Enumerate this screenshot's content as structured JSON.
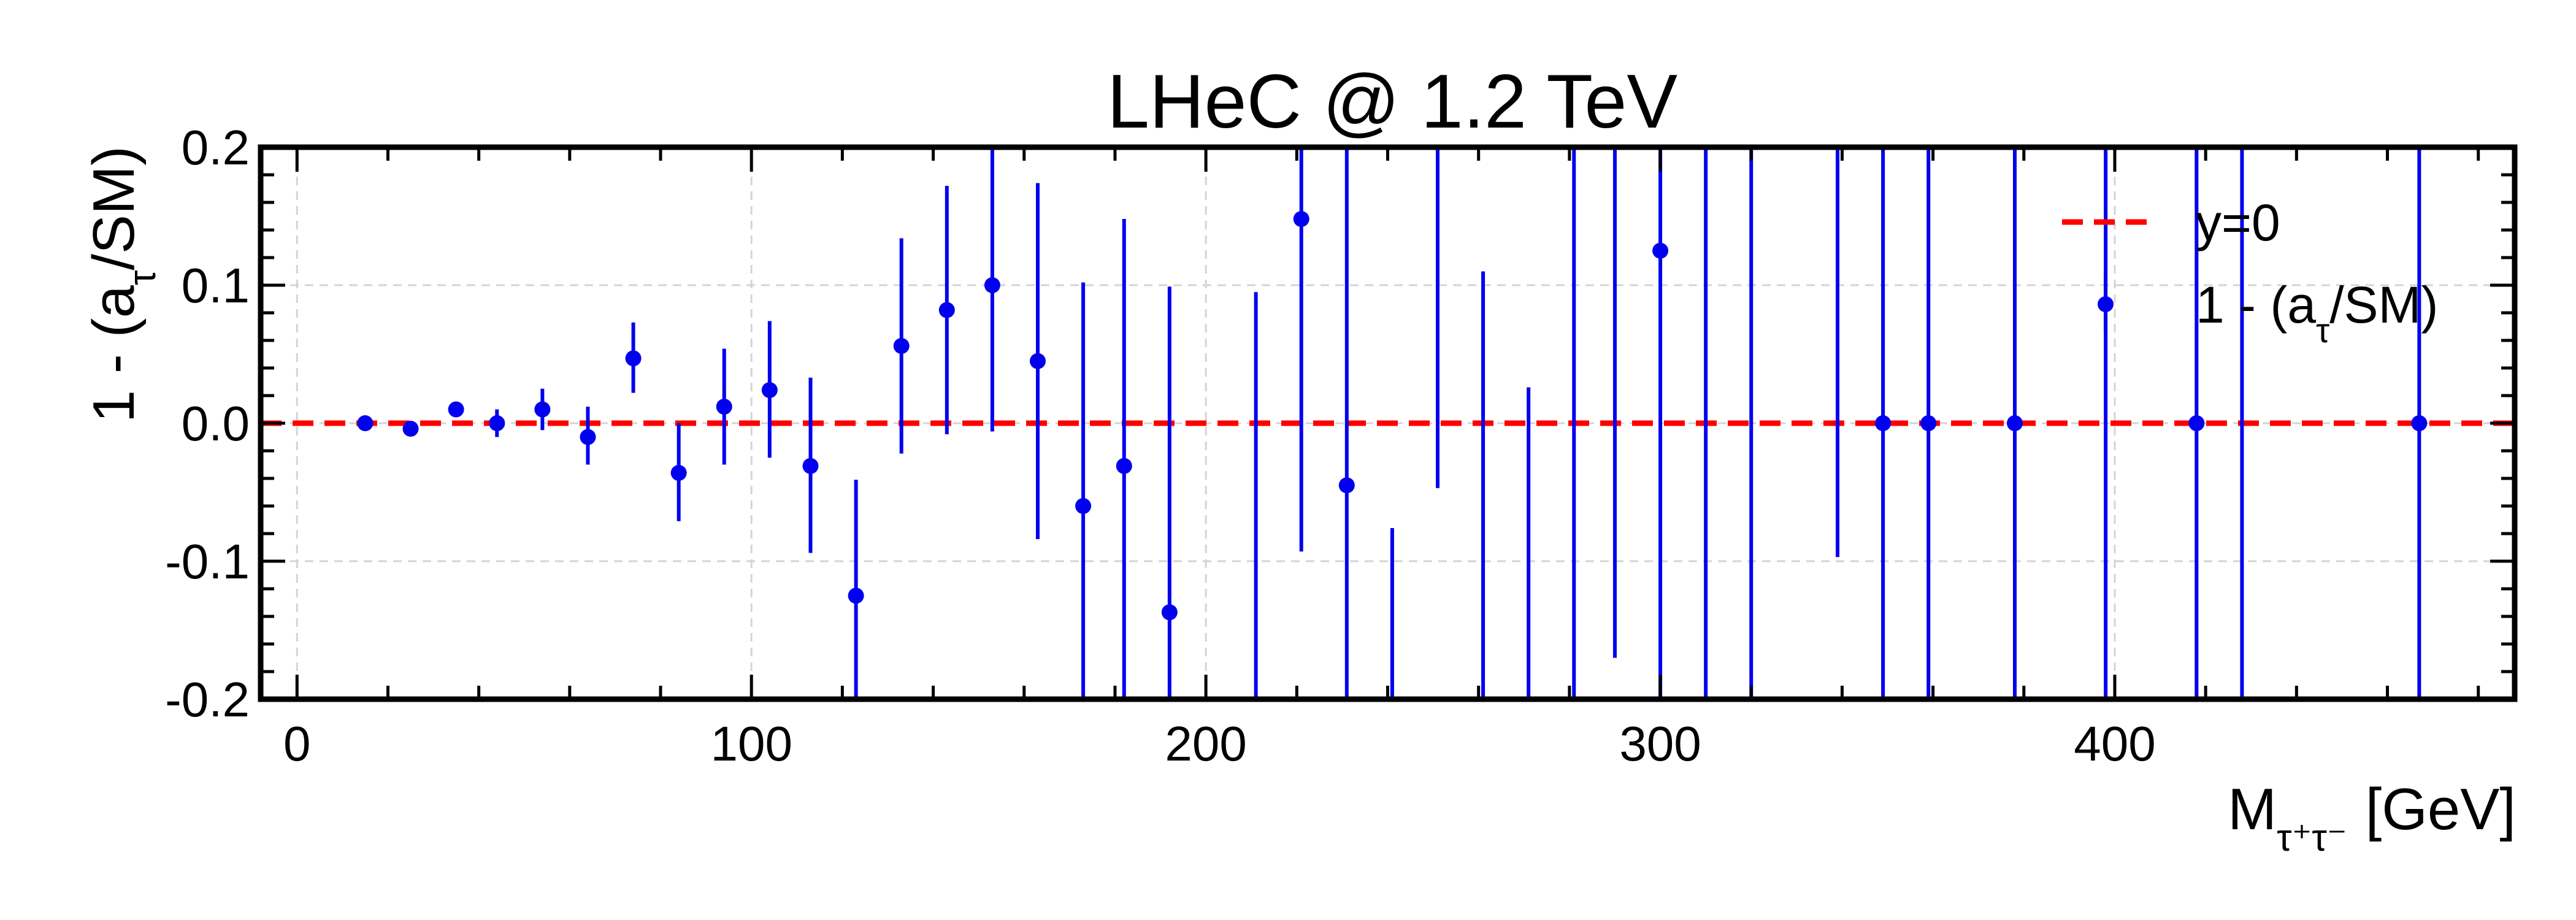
{
  "chart_data": {
    "type": "scatter",
    "title": "LHeC @ 1.2 TeV",
    "xlabel": {
      "base": "M",
      "sub": "τ⁺τ⁻",
      "unit": "[GeV]"
    },
    "ylabel": {
      "pre": "1 - (a",
      "sub": "τ",
      "post": "/SM)"
    },
    "xlim": [
      -8,
      488
    ],
    "ylim": [
      -0.2,
      0.2
    ],
    "xticks": [
      0,
      100,
      200,
      300,
      400
    ],
    "xtick_labels": [
      "0",
      "100",
      "200",
      "300",
      "400"
    ],
    "yticks": [
      -0.2,
      -0.1,
      0.0,
      0.1,
      0.2
    ],
    "ytick_labels": [
      "-0.2",
      "-0.1",
      "0.0",
      "0.1",
      "0.2"
    ],
    "grid": true,
    "legend_position": "top-right",
    "legend": [
      {
        "label": "y=0",
        "style": "dashed-line",
        "color": "#ff0000"
      },
      {
        "label": {
          "pre": "1 - (a",
          "sub": "τ",
          "post": "/SM)"
        },
        "style": "errorbar-point",
        "color": "#0000ee"
      }
    ],
    "reference_line": {
      "y": 0.0,
      "label": "y=0",
      "color": "#ff0000"
    },
    "series": [
      {
        "name": "1 - (aτ/SM)",
        "color": "#0000ee",
        "points": [
          {
            "x": 15,
            "y": 0.0,
            "lo": -0.004,
            "hi": 0.004
          },
          {
            "x": 25,
            "y": -0.004,
            "lo": -0.008,
            "hi": 0.0
          },
          {
            "x": 35,
            "y": 0.01,
            "lo": 0.005,
            "hi": 0.015
          },
          {
            "x": 44,
            "y": 0.0,
            "lo": -0.01,
            "hi": 0.01
          },
          {
            "x": 54,
            "y": 0.01,
            "lo": -0.005,
            "hi": 0.025
          },
          {
            "x": 64,
            "y": -0.01,
            "lo": -0.03,
            "hi": 0.012
          },
          {
            "x": 74,
            "y": 0.047,
            "lo": 0.022,
            "hi": 0.073
          },
          {
            "x": 84,
            "y": -0.036,
            "lo": -0.071,
            "hi": 0.0
          },
          {
            "x": 94,
            "y": 0.012,
            "lo": -0.03,
            "hi": 0.054
          },
          {
            "x": 104,
            "y": 0.024,
            "lo": -0.025,
            "hi": 0.074
          },
          {
            "x": 113,
            "y": -0.031,
            "lo": -0.094,
            "hi": 0.033
          },
          {
            "x": 123,
            "y": -0.125,
            "lo": -0.2,
            "hi": -0.041
          },
          {
            "x": 133,
            "y": 0.056,
            "lo": -0.022,
            "hi": 0.134
          },
          {
            "x": 143,
            "y": 0.082,
            "lo": -0.008,
            "hi": 0.172
          },
          {
            "x": 153,
            "y": 0.1,
            "lo": -0.006,
            "hi": 0.2
          },
          {
            "x": 163,
            "y": 0.045,
            "lo": -0.084,
            "hi": 0.174
          },
          {
            "x": 173,
            "y": -0.06,
            "lo": -0.2,
            "hi": 0.102
          },
          {
            "x": 182,
            "y": -0.031,
            "lo": -0.2,
            "hi": 0.148
          },
          {
            "x": 192,
            "y": -0.137,
            "lo": -0.2,
            "hi": 0.099
          },
          {
            "x": 211,
            "lo": -0.2,
            "hi": 0.095
          },
          {
            "x": 221,
            "y": 0.148,
            "lo": -0.093,
            "hi": 0.2
          },
          {
            "x": 231,
            "y": -0.045,
            "lo": -0.2,
            "hi": 0.2
          },
          {
            "x": 241,
            "lo": -0.2,
            "hi": -0.076
          },
          {
            "x": 251,
            "lo": -0.047,
            "hi": 0.2
          },
          {
            "x": 261,
            "lo": -0.2,
            "hi": 0.11
          },
          {
            "x": 271,
            "lo": -0.2,
            "hi": 0.026
          },
          {
            "x": 281,
            "lo": -0.2,
            "hi": 0.2
          },
          {
            "x": 290,
            "lo": -0.17,
            "hi": 0.2
          },
          {
            "x": 300,
            "y": 0.125,
            "lo": -0.2,
            "hi": 0.2
          },
          {
            "x": 310,
            "lo": -0.2,
            "hi": 0.2
          },
          {
            "x": 320,
            "lo": -0.2,
            "hi": 0.2
          },
          {
            "x": 339,
            "lo": -0.097,
            "hi": 0.2
          },
          {
            "x": 349,
            "y": 0.0,
            "lo": -0.2,
            "hi": 0.2
          },
          {
            "x": 359,
            "y": 0.0,
            "lo": -0.2,
            "hi": 0.2
          },
          {
            "x": 378,
            "y": 0.0,
            "lo": -0.2,
            "hi": 0.2
          },
          {
            "x": 398,
            "lo": -0.2,
            "hi": 0.2
          },
          {
            "x": 418,
            "y": 0.0,
            "lo": -0.2,
            "hi": 0.2
          },
          {
            "x": 428,
            "lo": -0.2,
            "hi": 0.2
          },
          {
            "x": 467,
            "y": 0.0,
            "lo": -0.2,
            "hi": 0.2
          }
        ]
      }
    ]
  }
}
